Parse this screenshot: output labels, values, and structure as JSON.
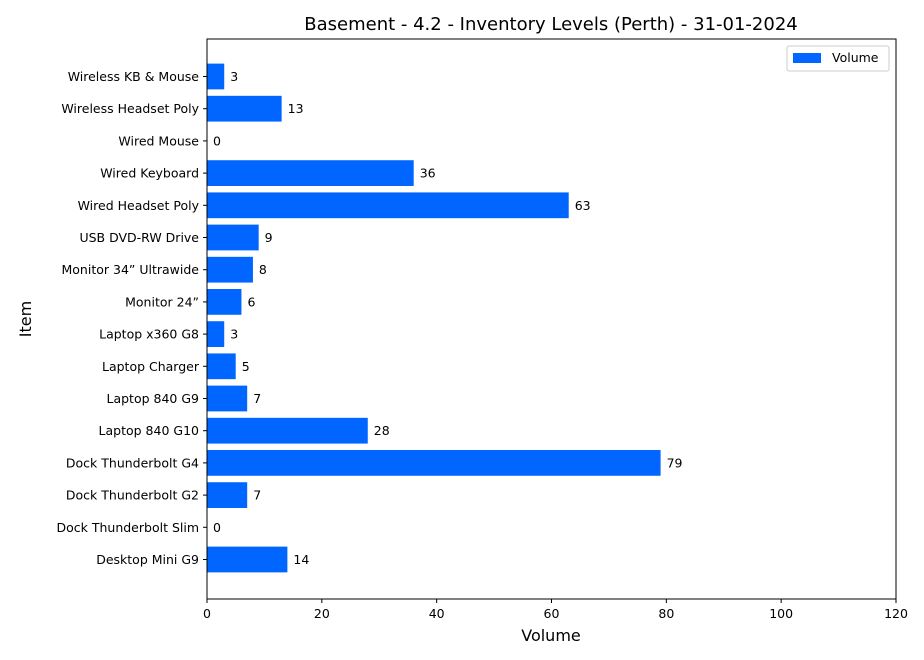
{
  "chart_data": {
    "type": "bar",
    "orientation": "horizontal",
    "title": "Basement - 4.2 - Inventory Levels (Perth) - 31-01-2024",
    "xlabel": "Volume",
    "ylabel": "Item",
    "xlim": [
      0,
      120
    ],
    "xticks": [
      0,
      20,
      40,
      60,
      80,
      100,
      120
    ],
    "grid": false,
    "legend_position": "top-right",
    "bar_color": "#0066ff",
    "categories": [
      "Desktop Mini G9",
      "Dock Thunderbolt Slim",
      "Dock Thunderbolt G2",
      "Dock Thunderbolt G4",
      "Laptop 840 G10",
      "Laptop 840 G9",
      "Laptop Charger ",
      "Laptop x360 G8",
      "Monitor 24” ",
      "Monitor 34” Ultrawide",
      "USB DVD-RW Drive",
      "Wired Headset Poly",
      "Wired Keyboard",
      "Wired Mouse",
      "Wireless Headset Poly ",
      "Wireless KB & Mouse"
    ],
    "series": [
      {
        "name": "Volume",
        "values": [
          14,
          0,
          7,
          79,
          28,
          7,
          5,
          3,
          6,
          8,
          9,
          63,
          36,
          0,
          13,
          3
        ]
      }
    ]
  }
}
